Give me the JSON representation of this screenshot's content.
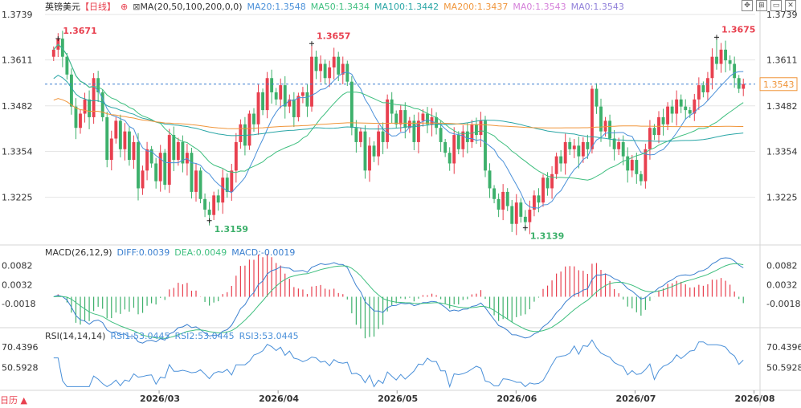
{
  "header": {
    "symbol": "英镑美元",
    "period": "【日线】",
    "ma_label": "MA(20,50,100,200,0,0)",
    "ma20": "MA20:1.3548",
    "ma50": "MA50:1.3434",
    "ma100": "MA100:1.3442",
    "ma200": "MA200:1.3437",
    "ma0a": "MA0:1.3543",
    "ma0b": "MA0:1.3543"
  },
  "macd_header": {
    "label": "MACD(26,12,9)",
    "diff": "DIFF:0.0039",
    "dea": "DEA:0.0049",
    "macd": "MACD:-0.0019"
  },
  "rsi_header": {
    "label": "RSI(14,14,14)",
    "rsi1": "RSI1:53.0445",
    "rsi2": "RSI2:53.0445",
    "rsi3": "RSI3:53.0445"
  },
  "bottom_left": "日历 ▲",
  "colors": {
    "up": "#e8404f",
    "down": "#3db06b",
    "ma20": "#4a90d9",
    "ma50": "#3fbf7f",
    "ma100": "#2aa6a6",
    "ma200": "#f0953a",
    "diff": "#3a7fcf",
    "dea": "#3fbf7f",
    "rsi": "#4a90d9",
    "grid": "#e6e6e6",
    "last_price_box": "#f0953a"
  },
  "chart_data": [
    {
      "type": "candlestick",
      "title": "英镑美元【日线】",
      "y_ticks": [
        "1.3739",
        "1.3611",
        "1.3482",
        "1.3354",
        "1.3225"
      ],
      "ylim": [
        1.3102,
        1.3739
      ],
      "x_ticks": [
        "2026/03",
        "2026/04",
        "2026/05",
        "2026/06",
        "2026/07",
        "2026/08"
      ],
      "annotations": [
        {
          "label": "1.3671",
          "index": 1,
          "value": 1.3671,
          "kind": "high"
        },
        {
          "label": "1.3159",
          "index": 35,
          "value": 1.3159,
          "kind": "low"
        },
        {
          "label": "1.3657",
          "index": 58,
          "value": 1.3657,
          "kind": "high"
        },
        {
          "label": "1.3139",
          "index": 106,
          "value": 1.3139,
          "kind": "low"
        },
        {
          "label": "1.3675",
          "index": 149,
          "value": 1.3675,
          "kind": "high"
        }
      ],
      "last_price": "1.3543",
      "last_price_value": 1.3543,
      "series_labels": [
        "MA20",
        "MA50",
        "MA100",
        "MA200"
      ],
      "ohlc_path": [
        1.364,
        1.3671,
        1.362,
        1.357,
        1.348,
        1.342,
        1.346,
        1.35,
        1.345,
        1.356,
        1.352,
        1.345,
        1.333,
        1.339,
        1.344,
        1.336,
        1.341,
        1.333,
        1.338,
        1.325,
        1.33,
        1.336,
        1.332,
        1.327,
        1.335,
        1.326,
        1.34,
        1.333,
        1.338,
        1.332,
        1.335,
        1.324,
        1.33,
        1.322,
        1.319,
        1.3175,
        1.323,
        1.321,
        1.328,
        1.324,
        1.33,
        1.338,
        1.343,
        1.337,
        1.346,
        1.343,
        1.352,
        1.347,
        1.356,
        1.352,
        1.35,
        1.354,
        1.348,
        1.35,
        1.345,
        1.351,
        1.352,
        1.348,
        1.362,
        1.358,
        1.36,
        1.356,
        1.359,
        1.362,
        1.357,
        1.36,
        1.355,
        1.342,
        1.338,
        1.341,
        1.33,
        1.337,
        1.334,
        1.341,
        1.338,
        1.35,
        1.346,
        1.343,
        1.347,
        1.342,
        1.344,
        1.338,
        1.344,
        1.346,
        1.343,
        1.345,
        1.342,
        1.338,
        1.335,
        1.332,
        1.34,
        1.336,
        1.341,
        1.338,
        1.343,
        1.34,
        1.344,
        1.33,
        1.325,
        1.322,
        1.319,
        1.324,
        1.32,
        1.315,
        1.321,
        1.317,
        1.3155,
        1.319,
        1.323,
        1.321,
        1.328,
        1.325,
        1.329,
        1.334,
        1.332,
        1.338,
        1.336,
        1.337,
        1.334,
        1.338,
        1.336,
        1.353,
        1.348,
        1.341,
        1.344,
        1.339,
        1.336,
        1.338,
        1.334,
        1.33,
        1.333,
        1.329,
        1.327,
        1.336,
        1.342,
        1.34,
        1.345,
        1.343,
        1.348,
        1.346,
        1.35,
        1.348,
        1.347,
        1.346,
        1.35,
        1.354,
        1.352,
        1.356,
        1.362,
        1.36,
        1.364,
        1.361,
        1.36,
        1.356,
        1.353,
        1.3543
      ]
    },
    {
      "type": "macd",
      "y_ticks": [
        "0.0082",
        "0.0032",
        "-0.0018"
      ],
      "ylim": [
        -0.006,
        0.01
      ],
      "series": [
        {
          "name": "DIFF"
        },
        {
          "name": "DEA"
        },
        {
          "name": "MACD"
        }
      ]
    },
    {
      "type": "rsi",
      "y_ticks": [
        "70.4396",
        "50.5928"
      ],
      "ylim": [
        30,
        80
      ],
      "series": [
        {
          "name": "RSI1"
        },
        {
          "name": "RSI2"
        },
        {
          "name": "RSI3"
        }
      ]
    }
  ]
}
